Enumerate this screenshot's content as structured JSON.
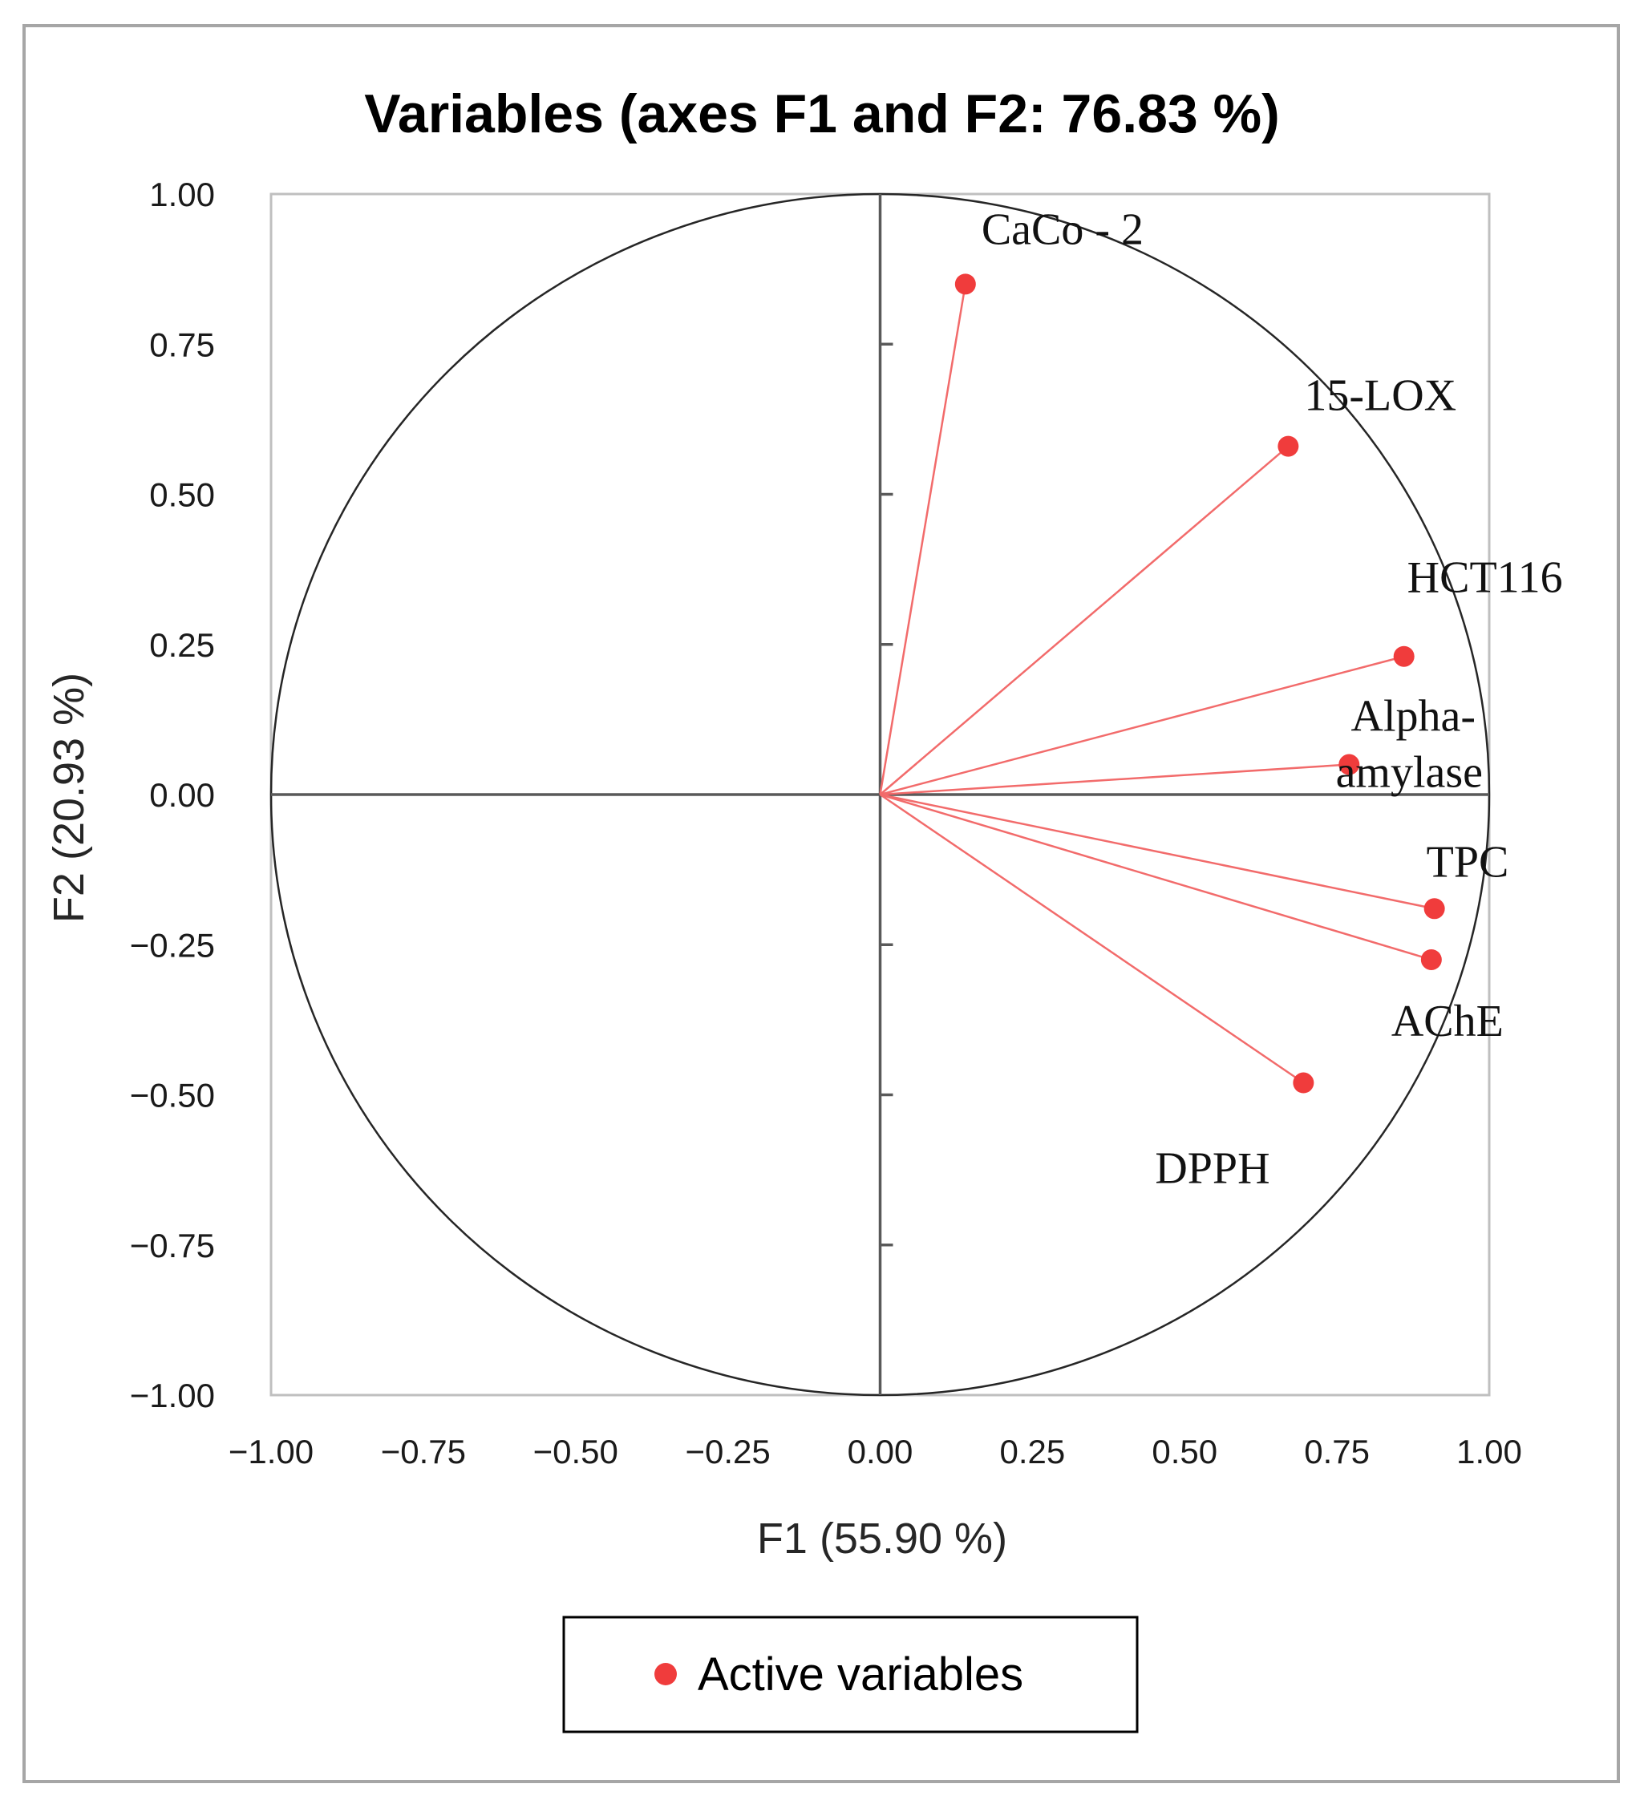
{
  "chart_data": {
    "type": "scatter",
    "subtype": "pca-correlation-circle",
    "title": "Variables (axes F1 and F2: 76.83 %)",
    "xlabel": "F1 (55.90 %)",
    "ylabel": "F2 (20.93 %)",
    "xlim": [
      -1.0,
      1.0
    ],
    "ylim": [
      -1.0,
      1.0
    ],
    "xticks": [
      -1.0,
      -0.75,
      -0.5,
      -0.25,
      0.0,
      0.25,
      0.5,
      0.75,
      1.0
    ],
    "yticks": [
      -1.0,
      -0.75,
      -0.5,
      -0.25,
      0.0,
      0.25,
      0.5,
      0.75,
      1.0
    ],
    "xtick_labels": [
      "−1.00",
      "−0.75",
      "−0.50",
      "−0.25",
      "0.00",
      "0.25",
      "0.50",
      "0.75",
      "1.00"
    ],
    "ytick_labels": [
      "−1.00",
      "−0.75",
      "−0.50",
      "−0.25",
      "0.00",
      "0.25",
      "0.50",
      "0.75",
      "1.00"
    ],
    "unit_circle": true,
    "series": [
      {
        "name": "Active variables",
        "color": "#f03c3c",
        "points": [
          {
            "label": "CaCo - 2",
            "x": 0.14,
            "y": 0.85
          },
          {
            "label": "15-LOX",
            "x": 0.67,
            "y": 0.58
          },
          {
            "label": "HCT116",
            "x": 0.86,
            "y": 0.23
          },
          {
            "label": "Alpha-",
            "label2": "amylase",
            "x": 0.77,
            "y": 0.05
          },
          {
            "label": "TPC",
            "x": 0.91,
            "y": -0.19
          },
          {
            "label": "AChE",
            "x": 0.905,
            "y": -0.275
          },
          {
            "label": "DPPH",
            "x": 0.695,
            "y": -0.48
          }
        ]
      }
    ],
    "legend": {
      "position": "bottom",
      "entries": [
        "Active variables"
      ]
    }
  }
}
